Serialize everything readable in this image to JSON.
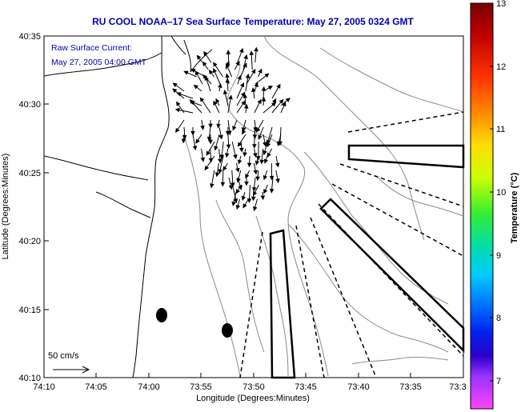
{
  "chart_data": {
    "type": "map",
    "title": "RU COOL  NOAA–17  Sea Surface Temperature:  May 27, 2005 0324 GMT",
    "xlabel": "Longitude (Degrees:Minutes)",
    "ylabel": "Latitude (Degrees:Minutes)",
    "x_ticks": [
      "74:10",
      "74:05",
      "74:00",
      "73:55",
      "73:50",
      "73:45",
      "73:40",
      "73:35",
      "73:3"
    ],
    "y_ticks": [
      "40:35",
      "40:30",
      "40:25",
      "40:20",
      "40:15",
      "40:10"
    ],
    "annotations": {
      "current_title": "Raw Surface Current:",
      "current_time": "May 27, 2005 04:00 GMT",
      "scale_label": "50 cm/s"
    },
    "colorbar": {
      "label": "Temperature (°C)",
      "ticks": [
        "13",
        "12",
        "11",
        "10",
        "9",
        "8",
        "7"
      ],
      "range": [
        6.3,
        13
      ]
    },
    "markers": [
      {
        "name": "site-a",
        "lon": -73.98,
        "lat": 40.245
      },
      {
        "name": "site-b",
        "lon": -73.87,
        "lat": 40.225
      }
    ],
    "colors": {
      "title": "#0000b4",
      "land": "#ffffff",
      "coast": "#000000",
      "contour": "#8a8a8a"
    }
  }
}
